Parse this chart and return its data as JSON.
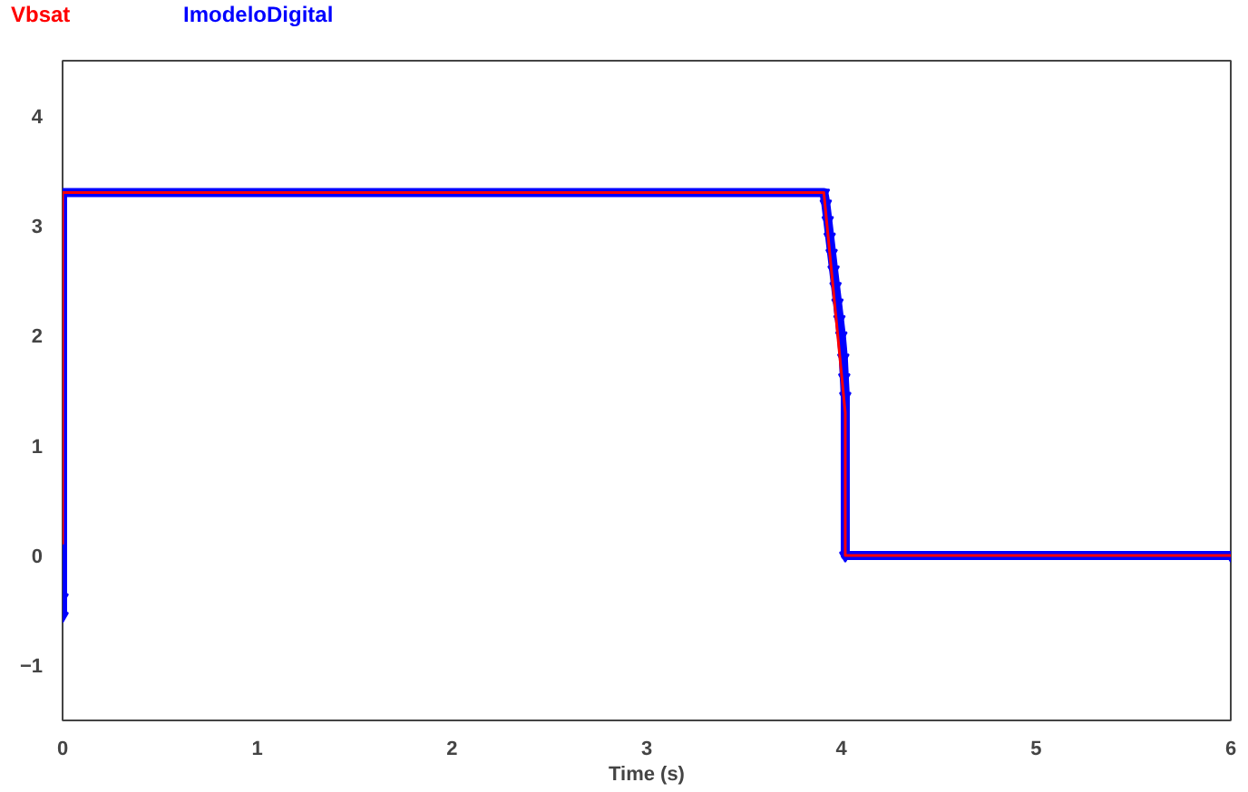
{
  "chart_data": {
    "type": "line",
    "xlabel": "Time (s)",
    "xlim": [
      0,
      6
    ],
    "xticks": [
      0,
      1,
      2,
      3,
      4,
      5,
      6
    ],
    "ylim": [
      -1.5,
      4.5
    ],
    "yticks": [
      -1,
      0,
      1,
      2,
      3,
      4
    ],
    "grid": false,
    "series": [
      {
        "name": "Vbsat",
        "color": "#ff0000",
        "marker": "none",
        "x": [
          0,
          0,
          3.91,
          4.02,
          4.02,
          6
        ],
        "values": [
          0.1,
          3.3,
          3.3,
          1.3,
          0,
          0
        ]
      },
      {
        "name": "ImodeloDigital",
        "color": "#0000ff",
        "marker": "triangle",
        "x": [
          0,
          0,
          0,
          3.91,
          3.92,
          3.93,
          3.94,
          3.95,
          3.96,
          3.97,
          3.98,
          3.99,
          4.0,
          4.01,
          4.015,
          4.02,
          4.02,
          6
        ],
        "values": [
          -0.55,
          -0.38,
          3.3,
          3.3,
          3.2,
          3.05,
          2.9,
          2.75,
          2.6,
          2.45,
          2.3,
          2.15,
          2.0,
          1.8,
          1.62,
          1.45,
          0,
          0
        ]
      }
    ]
  }
}
